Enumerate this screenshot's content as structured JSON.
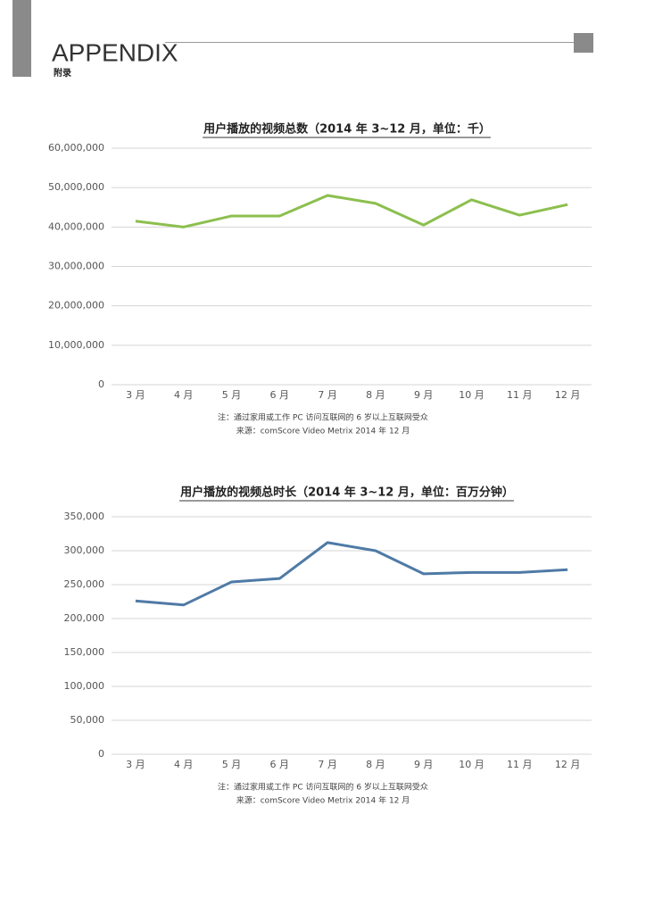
{
  "header": {
    "title": "APPENDIX",
    "subtitle": "附录"
  },
  "chart_data": [
    {
      "type": "line",
      "title": "用户播放的视频总数（2014 年 3~12 月，单位：千）",
      "categories": [
        "3 月",
        "4 月",
        "5 月",
        "6 月",
        "7 月",
        "8 月",
        "9 月",
        "10 月",
        "11 月",
        "12 月"
      ],
      "values": [
        41500000,
        40000000,
        42800000,
        42800000,
        48000000,
        46000000,
        40500000,
        46900000,
        43000000,
        45700000
      ],
      "color": "#8cbf4f",
      "ylim": [
        0,
        60000000
      ],
      "yticks": [
        0,
        {
          "value": 10000000,
          "label": "10,000,000"
        },
        {
          "value": 20000000,
          "label": "20,000,000"
        },
        {
          "value": 30000000,
          "label": "30,000,000"
        },
        {
          "value": 40000000,
          "label": "40,000,000"
        },
        {
          "value": 50000000,
          "label": "50,000,000"
        },
        {
          "value": 60000000,
          "label": "60,000,000"
        }
      ],
      "grid": true,
      "note": "注：通过家用或工作 PC 访问互联网的 6 岁以上互联网受众",
      "source": "来源：comScore Video Metrix 2014 年 12 月"
    },
    {
      "type": "line",
      "title": "用户播放的视频总时长（2014 年 3~12 月，单位：百万分钟）",
      "categories": [
        "3 月",
        "4 月",
        "5 月",
        "6 月",
        "7 月",
        "8 月",
        "9 月",
        "10 月",
        "11 月",
        "12 月"
      ],
      "values": [
        226000,
        220000,
        254000,
        259000,
        312000,
        300000,
        266000,
        268000,
        268000,
        272000
      ],
      "color": "#4f7aa6",
      "ylim": [
        0,
        350000
      ],
      "yticks": [
        0,
        {
          "value": 50000,
          "label": "50,000"
        },
        {
          "value": 100000,
          "label": "100,000"
        },
        {
          "value": 150000,
          "label": "150,000"
        },
        {
          "value": 200000,
          "label": "200,000"
        },
        {
          "value": 250000,
          "label": "250,000"
        },
        {
          "value": 300000,
          "label": "300,000"
        },
        {
          "value": 350000,
          "label": "350,000"
        }
      ],
      "grid": true,
      "note": "注：通过家用或工作 PC 访问互联网的 6 岁以上互联网受众",
      "source": "来源：comScore Video Metrix 2014 年 12 月"
    }
  ]
}
